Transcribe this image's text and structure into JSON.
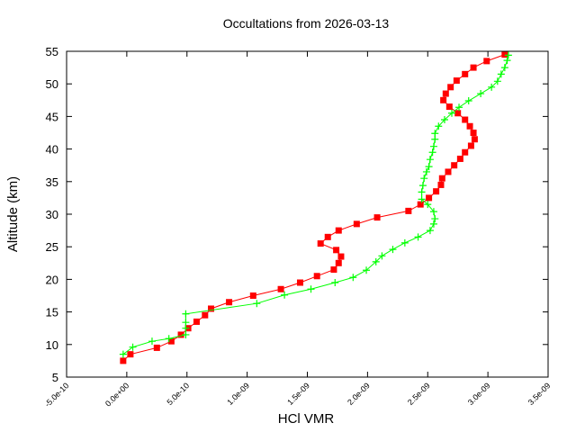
{
  "chart_data": {
    "type": "line",
    "title": "Occultations from 2026-03-13",
    "xlabel": "HCl VMR",
    "ylabel": "Altitude (km)",
    "xlim": [
      -5e-10,
      3.5e-09
    ],
    "ylim": [
      5,
      55
    ],
    "xticks": [
      -5e-10,
      0,
      5e-10,
      1e-09,
      1.5e-09,
      2e-09,
      2.5e-09,
      3e-09,
      3.5e-09
    ],
    "xtick_labels": [
      "-5.0e-10",
      "0.0e+00",
      "5.0e-10",
      "1.0e-09",
      "1.5e-09",
      "2.0e-09",
      "2.5e-09",
      "3.0e-09",
      "3.5e-09"
    ],
    "yticks": [
      5,
      10,
      15,
      20,
      25,
      30,
      35,
      40,
      45,
      50,
      55
    ],
    "ytick_labels": [
      "5",
      "10",
      "15",
      "20",
      "25",
      "30",
      "35",
      "40",
      "45",
      "50",
      "55"
    ],
    "grid": false,
    "series": [
      {
        "color": "#ff0000",
        "marker": "square",
        "x": [
          -3e-11,
          3e-11,
          2.5e-10,
          3.7e-10,
          4.5e-10,
          5.1e-10,
          5.8e-10,
          6.5e-10,
          7e-10,
          8.5e-10,
          1.05e-09,
          1.28e-09,
          1.44e-09,
          1.58e-09,
          1.72e-09,
          1.76e-09,
          1.78e-09,
          1.74e-09,
          1.61e-09,
          1.67e-09,
          1.76e-09,
          1.91e-09,
          2.08e-09,
          2.34e-09,
          2.44e-09,
          2.51e-09,
          2.57e-09,
          2.61e-09,
          2.62e-09,
          2.67e-09,
          2.72e-09,
          2.77e-09,
          2.81e-09,
          2.86e-09,
          2.89e-09,
          2.88e-09,
          2.85e-09,
          2.81e-09,
          2.75e-09,
          2.68e-09,
          2.63e-09,
          2.65e-09,
          2.69e-09,
          2.74e-09,
          2.81e-09,
          2.88e-09,
          2.99e-09,
          3.14e-09
        ],
        "y": [
          7.5,
          8.5,
          9.5,
          10.5,
          11.5,
          12.5,
          13.5,
          14.5,
          15.5,
          16.5,
          17.5,
          18.5,
          19.5,
          20.5,
          21.5,
          22.5,
          23.5,
          24.5,
          25.5,
          26.5,
          27.5,
          28.5,
          29.5,
          30.5,
          31.5,
          32.5,
          33.5,
          34.5,
          35.5,
          36.5,
          37.5,
          38.5,
          39.5,
          40.5,
          41.5,
          42.5,
          43.5,
          44.5,
          45.5,
          46.5,
          47.5,
          48.5,
          49.5,
          50.5,
          51.5,
          52.5,
          53.5,
          54.5
        ]
      },
      {
        "color": "#00ff00",
        "marker": "plus",
        "x": [
          -3e-11,
          5e-11,
          2.1e-10,
          3.5e-10,
          4.9e-10,
          4.9e-10,
          4.9e-10,
          4.9e-10,
          1.08e-09,
          1.31e-09,
          1.53e-09,
          1.73e-09,
          1.88e-09,
          1.99e-09,
          2.07e-09,
          2.12e-09,
          2.21e-09,
          2.31e-09,
          2.42e-09,
          2.52e-09,
          2.55e-09,
          2.56e-09,
          2.55e-09,
          2.5e-09,
          2.45e-09,
          2.45e-09,
          2.46e-09,
          2.47e-09,
          2.49e-09,
          2.51e-09,
          2.52e-09,
          2.54e-09,
          2.55e-09,
          2.56e-09,
          2.56e-09,
          2.59e-09,
          2.64e-09,
          2.7e-09,
          2.76e-09,
          2.84e-09,
          2.94e-09,
          3.03e-09,
          3.08e-09,
          3.11e-09,
          3.14e-09,
          3.16e-09,
          3.17e-09
        ],
        "y": [
          8.5,
          9.6,
          10.5,
          10.9,
          11.5,
          12.5,
          13.4,
          14.7,
          16.3,
          17.6,
          18.5,
          19.5,
          20.3,
          21.4,
          22.7,
          23.6,
          24.6,
          25.6,
          26.5,
          27.5,
          28.5,
          29.3,
          30.4,
          31.5,
          32.3,
          33.4,
          34.4,
          35.5,
          36.5,
          37.3,
          38.4,
          39.5,
          40.4,
          41.5,
          42.4,
          43.5,
          44.5,
          45.5,
          46.4,
          47.4,
          48.5,
          49.5,
          50.4,
          51.5,
          52.5,
          53.6,
          54.4
        ]
      }
    ]
  }
}
